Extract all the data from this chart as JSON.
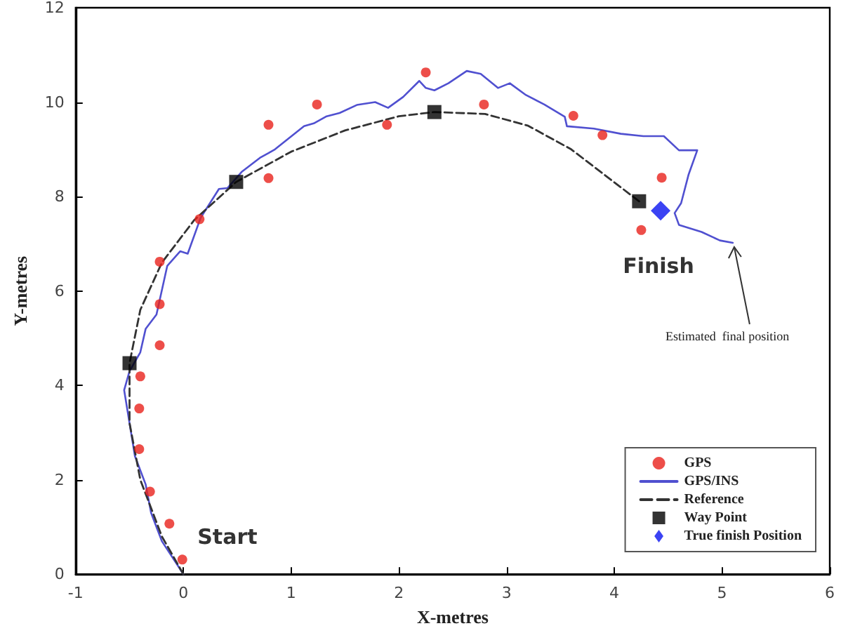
{
  "chart_data": {
    "type": "scatter",
    "xlabel": "X-metres",
    "ylabel": "Y-metres",
    "xlim": [
      -1,
      6
    ],
    "xticks": [
      -1,
      0,
      1,
      2,
      3,
      4,
      5,
      6
    ],
    "ylim": [
      0,
      12
    ],
    "yticks": [
      0,
      2,
      4,
      6,
      8,
      10,
      12
    ],
    "grid": false,
    "legend": "bottom right",
    "series": [
      {
        "name": "GPS",
        "marker": "circle",
        "color": "#e8221c",
        "x": [
          -0.01,
          -0.13,
          -0.31,
          -0.41,
          -0.41,
          -0.4,
          -0.22,
          -0.22,
          -0.22,
          0.15,
          0.79,
          0.79,
          1.24,
          1.89,
          2.25,
          2.79,
          3.62,
          3.89,
          4.44,
          4.25
        ],
        "values": [
          0.31,
          1.07,
          1.75,
          2.65,
          3.51,
          4.19,
          4.85,
          5.72,
          6.62,
          7.52,
          8.39,
          9.52,
          9.95,
          9.52,
          10.63,
          9.95,
          9.71,
          9.3,
          8.4,
          7.29
        ]
      },
      {
        "name": "GPS/INS",
        "type": "line",
        "marker": "none",
        "line_style": "solid",
        "color": "#5050d0",
        "x": [
          0,
          -0.2,
          -0.3,
          -0.35,
          -0.45,
          -0.5,
          -0.55,
          -0.5,
          -0.4,
          -0.35,
          -0.25,
          -0.15,
          -0.03,
          0.04,
          0.16,
          0.33,
          0.41,
          0.54,
          0.71,
          0.79,
          0.85,
          1.12,
          1.21,
          1.33,
          1.45,
          1.61,
          1.78,
          1.9,
          2.04,
          2.19,
          2.25,
          2.33,
          2.46,
          2.63,
          2.76,
          2.92,
          3.03,
          3.18,
          3.35,
          3.54,
          3.56,
          3.81,
          4.06,
          4.27,
          4.46,
          4.6,
          4.77,
          4.69,
          4.62,
          4.56,
          4.6,
          4.81,
          4.98,
          5.1
        ],
        "values": [
          0,
          0.7,
          1.3,
          1.9,
          2.5,
          3.2,
          3.9,
          4.3,
          4.7,
          5.2,
          5.5,
          6.53,
          6.84,
          6.79,
          7.55,
          8.16,
          8.18,
          8.52,
          8.82,
          8.92,
          9.0,
          9.49,
          9.55,
          9.7,
          9.77,
          9.94,
          10.0,
          9.88,
          10.11,
          10.45,
          10.3,
          10.25,
          10.4,
          10.66,
          10.6,
          10.3,
          10.4,
          10.15,
          9.95,
          9.69,
          9.49,
          9.44,
          9.33,
          9.28,
          9.28,
          8.98,
          8.98,
          8.47,
          7.86,
          7.65,
          7.4,
          7.25,
          7.07,
          7.02
        ]
      },
      {
        "name": "Reference",
        "type": "line",
        "marker": "none",
        "line_style": "dashed",
        "color": "#333333",
        "x": [
          0,
          -0.2,
          -0.4,
          -0.5,
          -0.5,
          -0.4,
          -0.2,
          0.1,
          0.49,
          1,
          1.5,
          2,
          2.33,
          2.8,
          3.2,
          3.6,
          4,
          4.23
        ],
        "values": [
          0,
          0.8,
          2,
          3.2,
          4.47,
          5.6,
          6.6,
          7.5,
          8.31,
          8.95,
          9.4,
          9.7,
          9.79,
          9.75,
          9.5,
          9.0,
          8.3,
          7.9
        ]
      },
      {
        "name": "Way Point",
        "marker": "square",
        "color": "#000000",
        "x": [
          -0.5,
          0.49,
          2.33,
          4.23
        ],
        "values": [
          4.47,
          8.31,
          9.79,
          7.9
        ]
      },
      {
        "name": "True finish Position",
        "marker": "diamond",
        "color": "#0a14f0",
        "x": [
          4.43
        ],
        "values": [
          7.7
        ]
      }
    ],
    "annotations": [
      {
        "text": "Start",
        "x": 0,
        "y": 0
      },
      {
        "text": "Finish",
        "x": 4.6,
        "y": 7.4
      },
      {
        "text": "Estimated  final position",
        "x": 5.1,
        "y": 7.02
      }
    ]
  }
}
